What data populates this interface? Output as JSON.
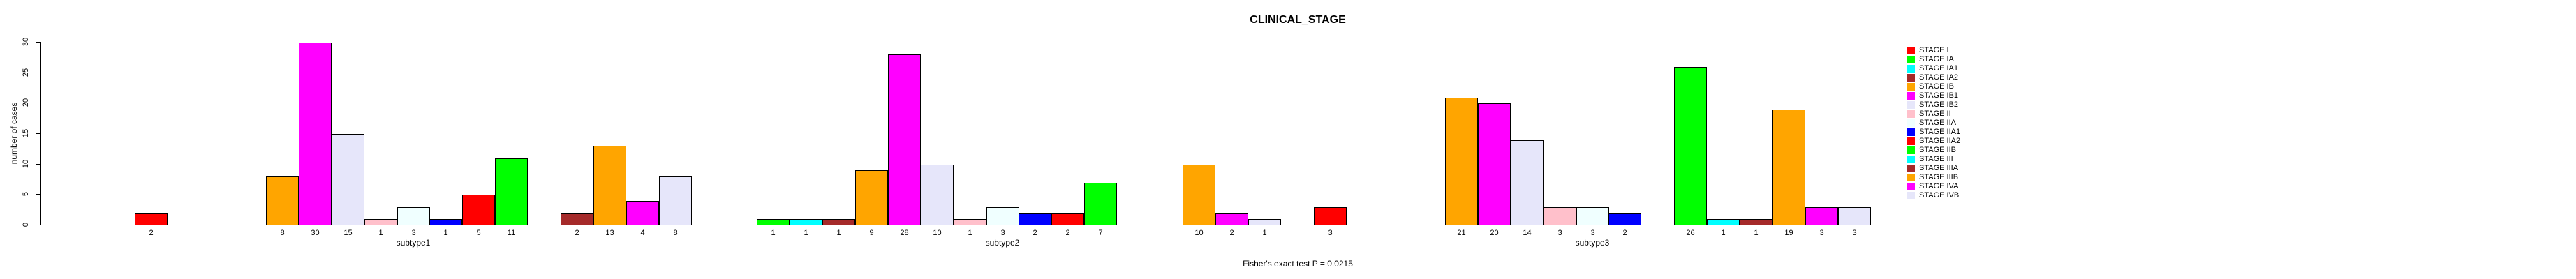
{
  "title": "CLINICAL_STAGE",
  "footer": "Fisher's exact test P = 0.0215",
  "chart_data": {
    "type": "bar",
    "title": "CLINICAL_STAGE",
    "ylabel": "number of cases",
    "xlabel": "",
    "ylim": [
      0,
      30
    ],
    "yticks": [
      0,
      5,
      10,
      15,
      20,
      25,
      30
    ],
    "grid": false,
    "legend_position": "right",
    "annotation": "Fisher's exact test P = 0.0215",
    "categories": [
      "STAGE I",
      "STAGE IA",
      "STAGE IA1",
      "STAGE IA2",
      "STAGE IB",
      "STAGE IB1",
      "STAGE IB2",
      "STAGE II",
      "STAGE IIA",
      "STAGE IIA1",
      "STAGE IIA2",
      "STAGE IIB",
      "STAGE III",
      "STAGE IIIA",
      "STAGE IIIB",
      "STAGE IVA",
      "STAGE IVB"
    ],
    "stage_colors": [
      "#FF0000",
      "#00FF00",
      "#00FFFF",
      "#A52A2A",
      "#FFA500",
      "#FF00FF",
      "#E6E6FA",
      "#FFC0CB",
      "#F0FFFF",
      "#0000FF",
      "#FF0000",
      "#00FF00",
      "#00FFFF",
      "#A52A2A",
      "#FFA500",
      "#FF00FF",
      "#E6E6FA"
    ],
    "series": [
      {
        "name": "subtype1",
        "values": [
          2,
          0,
          0,
          0,
          8,
          30,
          15,
          1,
          3,
          1,
          5,
          11,
          0,
          2,
          13,
          4,
          8
        ]
      },
      {
        "name": "subtype2",
        "values": [
          0,
          1,
          1,
          1,
          9,
          28,
          10,
          1,
          3,
          2,
          2,
          7,
          0,
          0,
          10,
          2,
          1
        ]
      },
      {
        "name": "subtype3",
        "values": [
          3,
          0,
          0,
          0,
          21,
          20,
          14,
          3,
          3,
          2,
          0,
          26,
          1,
          1,
          19,
          3,
          3
        ]
      }
    ],
    "bar_border_color": "#000000",
    "axis_color": "#000000",
    "text_color": "#000000",
    "background_color": "#FFFFFF"
  }
}
